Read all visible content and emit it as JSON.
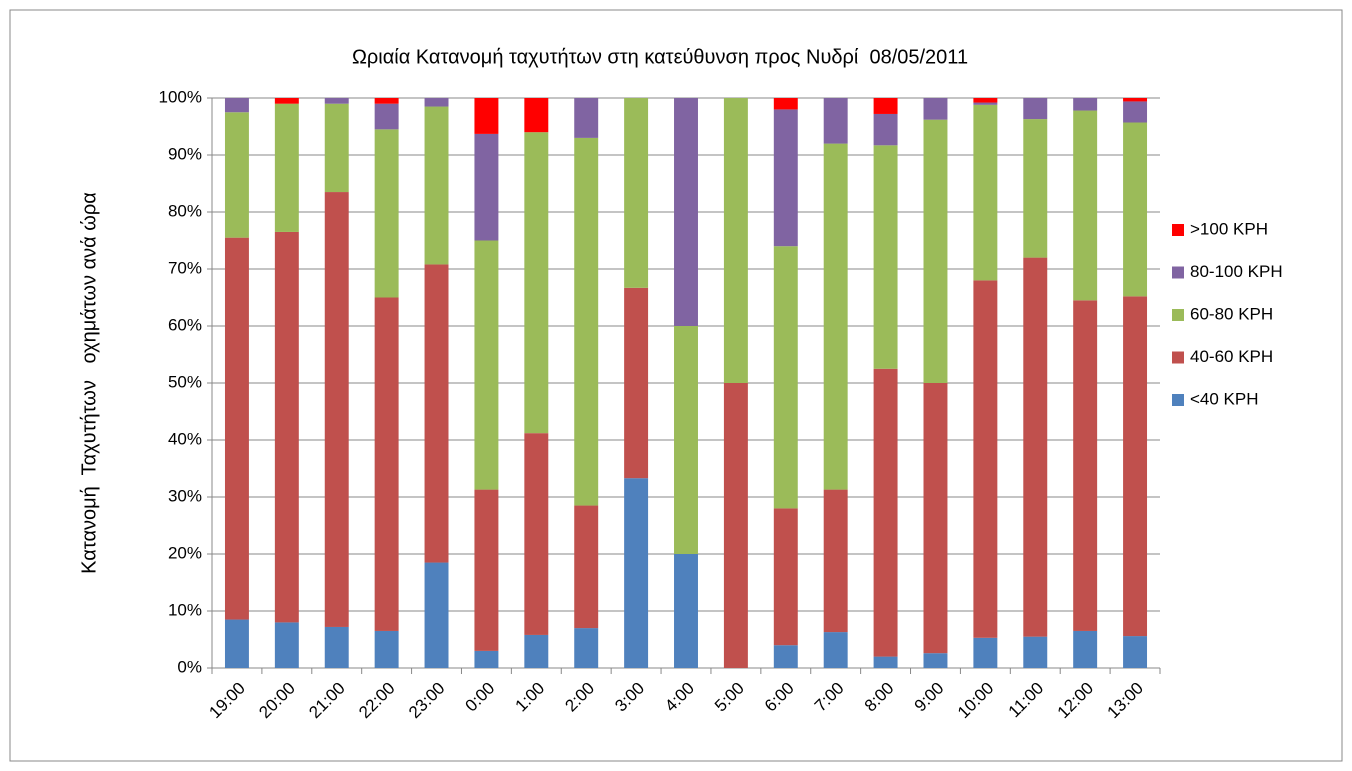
{
  "chart_data": {
    "type": "stacked_bar",
    "title": "Ωριαία Κατανομή ταχυτήτων στη κατεύθυνση προς Νυδρί  08/05/2011",
    "y_label": "Κατανομή  Ταχυτήτων   οχημάτων ανά ώρα",
    "categories": [
      "19:00",
      "20:00",
      "21:00",
      "22:00",
      "23:00",
      "0:00",
      "1:00",
      "2:00",
      "3:00",
      "4:00",
      "5:00",
      "6:00",
      "7:00",
      "8:00",
      "9:00",
      "10:00",
      "11:00",
      "12:00",
      "13:00"
    ],
    "series": [
      {
        "name": "<40 KPH",
        "color": "#4f81bd",
        "values": [
          8.5,
          8,
          7.2,
          6.5,
          18.5,
          3,
          5.8,
          7,
          33.3,
          20,
          0,
          4,
          6.3,
          2,
          2.6,
          5.3,
          5.5,
          6.5,
          5.6
        ]
      },
      {
        "name": "40-60 KPH",
        "color": "#c0504d",
        "values": [
          67,
          68.5,
          76.3,
          58.5,
          52.3,
          28.3,
          35.4,
          21.5,
          33.4,
          0,
          50,
          24,
          25,
          50.5,
          47.4,
          62.7,
          66.5,
          58,
          59.6
        ]
      },
      {
        "name": "60-80 KPH",
        "color": "#9bbb59",
        "values": [
          22,
          22.5,
          15.5,
          29.5,
          27.7,
          43.7,
          52.8,
          64.5,
          33.3,
          40,
          50,
          46,
          60.7,
          39.2,
          46.2,
          30.8,
          24.3,
          33.3,
          30.5
        ]
      },
      {
        "name": "80-100 KPH",
        "color": "#8064a2",
        "values": [
          2.5,
          0,
          1,
          4.5,
          1.5,
          18.7,
          0,
          7,
          0,
          40,
          0,
          24,
          8,
          5.5,
          3.8,
          0.4,
          3.7,
          2.2,
          3.7
        ]
      },
      {
        "name": ">100 KPH",
        "color": "#ff0000",
        "values": [
          0,
          1,
          0,
          1,
          0,
          6.3,
          6,
          0,
          0,
          0,
          0,
          2,
          0,
          2.8,
          0,
          0.8,
          0,
          0,
          0.6
        ]
      }
    ],
    "ylim": [
      0,
      100
    ],
    "yticks": [
      {
        "value": 0,
        "label": "0%"
      },
      {
        "value": 10,
        "label": "10%"
      },
      {
        "value": 20,
        "label": "20%"
      },
      {
        "value": 30,
        "label": "30%"
      },
      {
        "value": 40,
        "label": "40%"
      },
      {
        "value": 50,
        "label": "50%"
      },
      {
        "value": 60,
        "label": "60%"
      },
      {
        "value": 70,
        "label": "70%"
      },
      {
        "value": 80,
        "label": "80%"
      },
      {
        "value": 90,
        "label": "90%"
      },
      {
        "value": 100,
        "label": "100%"
      }
    ],
    "grid": true,
    "legend": "right"
  }
}
